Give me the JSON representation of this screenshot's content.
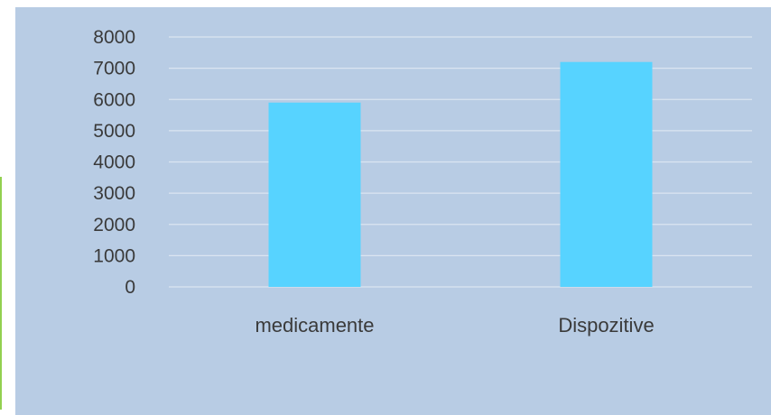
{
  "chart_data": {
    "type": "bar",
    "categories": [
      "medicamente",
      "Dispozitive"
    ],
    "values": [
      5900,
      7200
    ],
    "ylim": [
      0,
      8000
    ],
    "yticks": [
      0,
      1000,
      2000,
      3000,
      4000,
      5000,
      6000,
      7000,
      8000
    ],
    "grid": true,
    "legend": "none",
    "colors": {
      "background": "#b8cce4",
      "bar": "#57d3ff",
      "gridline": "#dbe5f1",
      "text": "#3a3a3a",
      "accent": "#92d050"
    }
  }
}
